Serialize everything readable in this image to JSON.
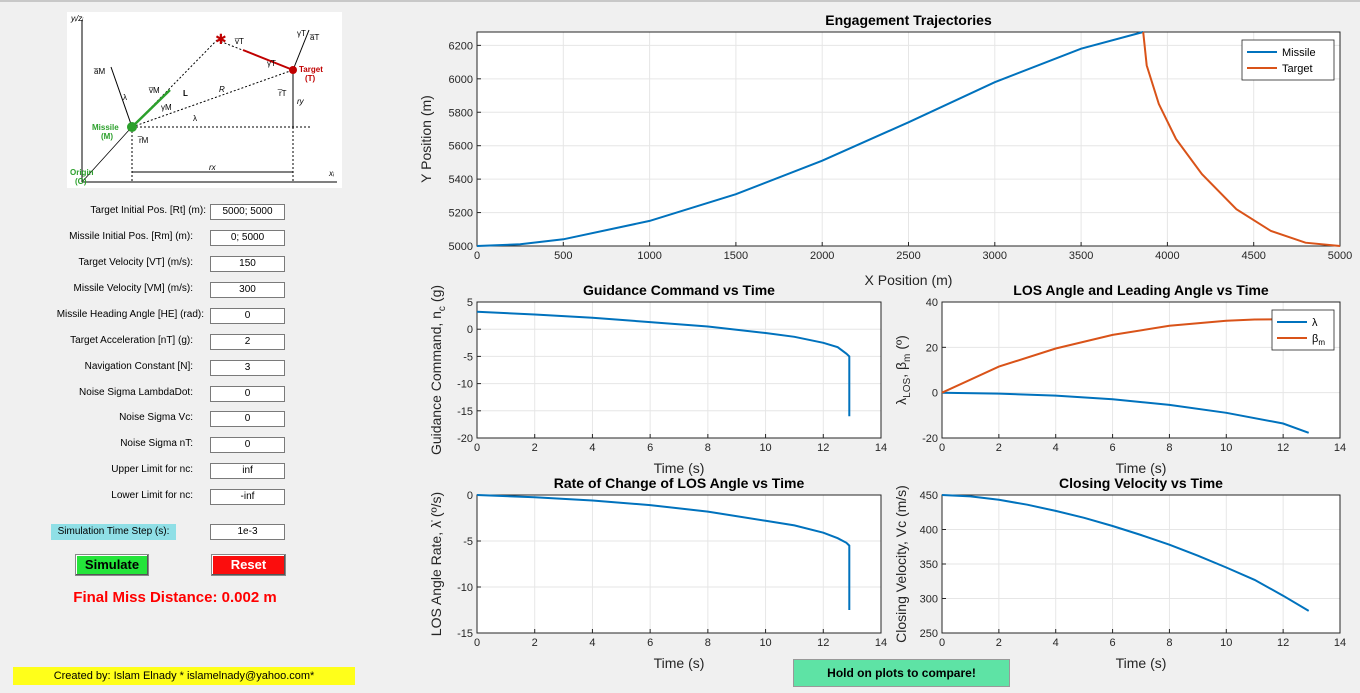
{
  "diagram": {
    "y_axis_label": "yᵢ/zᵢ",
    "x_axis_label": "xᵢ",
    "origin_label": "Origin",
    "origin_sub": "(O)",
    "missile_label": "Missile",
    "missile_sub": "(M)",
    "target_label": "Target",
    "target_sub": "(T)",
    "vm": "v̅M",
    "vt": "v̅T",
    "am": "a̅M",
    "at": "a̅T",
    "gamma_t": "γT",
    "gamma_t2": "γT",
    "gamma_m": "γM",
    "lam": "λ",
    "lam2": "λ",
    "L": "L",
    "R": "R",
    "rt_vec": "r̅T",
    "rm_vec": "r̅M",
    "ry": "ry",
    "rx": "rx"
  },
  "params": [
    {
      "label": "Target Initial Pos. [Rt] (m):",
      "value": "5000; 5000"
    },
    {
      "label": "Missile Initial Pos. [Rm] (m):",
      "value": "0; 5000"
    },
    {
      "label": "Target Velocity [VT] (m/s):",
      "value": "150"
    },
    {
      "label": "Missile Velocity [VM] (m/s):",
      "value": "300"
    },
    {
      "label": "Missile Heading Angle [HE] (rad):",
      "value": "0"
    },
    {
      "label": "Target Acceleration [nT] (g):",
      "value": "2"
    },
    {
      "label": "Navigation Constant [N]:",
      "value": "3"
    },
    {
      "label": "Noise Sigma LambdaDot:",
      "value": "0"
    },
    {
      "label": "Noise Sigma Vc:",
      "value": "0"
    },
    {
      "label": "Noise Sigma nT:",
      "value": "0"
    },
    {
      "label": "Upper Limit for nc:",
      "value": "inf"
    },
    {
      "label": "Lower Limit for nc:",
      "value": "-inf"
    }
  ],
  "time_step": {
    "label": "Simulation Time Step (s):",
    "value": "1e-3"
  },
  "buttons": {
    "simulate": "Simulate",
    "reset": "Reset",
    "hold": "Hold on plots to compare!"
  },
  "miss_distance": "Final Miss Distance: 0.002 m",
  "credit": "Created by: Islam Elnady * islamelnady@yahoo.com*",
  "colors": {
    "missile": "#0072bd",
    "target": "#d95319"
  },
  "chart_data": [
    {
      "type": "line",
      "title": "Engagement Trajectories",
      "xlabel": "X Position (m)",
      "ylabel": "Y Position (m)",
      "xlim": [
        0,
        5000
      ],
      "ylim": [
        5000,
        6280
      ],
      "xticks": [
        0,
        500,
        1000,
        1500,
        2000,
        2500,
        3000,
        3500,
        4000,
        4500,
        5000
      ],
      "yticks": [
        5000,
        5200,
        5400,
        5600,
        5800,
        6000,
        6200
      ],
      "legend": "top-right",
      "series": [
        {
          "name": "Missile",
          "x": [
            0,
            250,
            500,
            1000,
            1500,
            2000,
            2500,
            3000,
            3500,
            3860
          ],
          "y": [
            5000,
            5010,
            5040,
            5150,
            5310,
            5510,
            5740,
            5980,
            6180,
            6280
          ]
        },
        {
          "name": "Target",
          "x": [
            5000,
            4800,
            4600,
            4400,
            4200,
            4050,
            3950,
            3880,
            3860
          ],
          "y": [
            5000,
            5020,
            5090,
            5220,
            5430,
            5640,
            5850,
            6080,
            6280
          ]
        }
      ]
    },
    {
      "type": "line",
      "title": "Guidance Command vs Time",
      "xlabel": "Time (s)",
      "ylabel": "Guidance Command, n",
      "ylabel_sub": "c",
      "ylabel_unit": "(g)",
      "xlim": [
        0,
        14
      ],
      "ylim": [
        -20,
        5
      ],
      "xticks": [
        0,
        2,
        4,
        6,
        8,
        10,
        12,
        14
      ],
      "yticks": [
        -20,
        -15,
        -10,
        -5,
        0,
        5
      ],
      "series": [
        {
          "x": [
            0,
            2,
            4,
            6,
            8,
            10,
            11,
            12,
            12.5,
            12.8,
            12.9,
            12.9
          ],
          "y": [
            3.2,
            2.7,
            2.1,
            1.3,
            0.5,
            -0.7,
            -1.4,
            -2.5,
            -3.3,
            -4.5,
            -5,
            -16
          ]
        }
      ]
    },
    {
      "type": "line",
      "title": "LOS Angle and Leading Angle vs Time",
      "xlabel": "Time (s)",
      "ylabel": "λ",
      "ylabel_sub": "LOS",
      "ylabel_mid": ", β",
      "ylabel_sub2": "m",
      "ylabel_unit": "(º)",
      "xlim": [
        0,
        14
      ],
      "ylim": [
        -20,
        40
      ],
      "xticks": [
        0,
        2,
        4,
        6,
        8,
        10,
        12,
        14
      ],
      "yticks": [
        -20,
        0,
        20,
        40
      ],
      "legend": "top-right",
      "series": [
        {
          "name": "λ",
          "x": [
            0,
            2,
            4,
            6,
            8,
            10,
            12,
            12.9
          ],
          "y": [
            0,
            -0.4,
            -1.3,
            -2.9,
            -5.4,
            -8.9,
            -13.6,
            -17.7
          ]
        },
        {
          "name": "β",
          "name_sub": "m",
          "x": [
            0,
            2,
            4,
            6,
            8,
            10,
            11,
            12,
            12.9
          ],
          "y": [
            0,
            11.5,
            19.5,
            25.5,
            29.5,
            31.7,
            32.3,
            32.4,
            32.1
          ]
        }
      ]
    },
    {
      "type": "line",
      "title": "Rate of Change of LOS Angle vs Time",
      "xlabel": "Time (s)",
      "ylabel": "LOS Angle Rate, λ̇ (º/s)",
      "xlim": [
        0,
        14
      ],
      "ylim": [
        -15,
        0
      ],
      "xticks": [
        0,
        2,
        4,
        6,
        8,
        10,
        12,
        14
      ],
      "yticks": [
        -15,
        -10,
        -5,
        0
      ],
      "series": [
        {
          "x": [
            0,
            2,
            4,
            6,
            8,
            10,
            11,
            12,
            12.5,
            12.8,
            12.9,
            12.9
          ],
          "y": [
            0,
            -0.25,
            -0.6,
            -1.1,
            -1.8,
            -2.8,
            -3.3,
            -4.1,
            -4.7,
            -5.2,
            -5.5,
            -12.5
          ]
        }
      ]
    },
    {
      "type": "line",
      "title": "Closing Velocity vs Time",
      "xlabel": "Time (s)",
      "ylabel": "Closing Velocity, Vc (m/s)",
      "xlim": [
        0,
        14
      ],
      "ylim": [
        250,
        450
      ],
      "xticks": [
        0,
        2,
        4,
        6,
        8,
        10,
        12,
        14
      ],
      "yticks": [
        250,
        300,
        350,
        400,
        450
      ],
      "series": [
        {
          "x": [
            0,
            1,
            2,
            3,
            4,
            5,
            6,
            7,
            8,
            9,
            10,
            11,
            12,
            12.9
          ],
          "y": [
            450,
            448,
            443,
            436,
            427,
            417,
            405,
            392,
            378,
            362,
            345,
            327,
            304,
            282
          ]
        }
      ]
    }
  ]
}
